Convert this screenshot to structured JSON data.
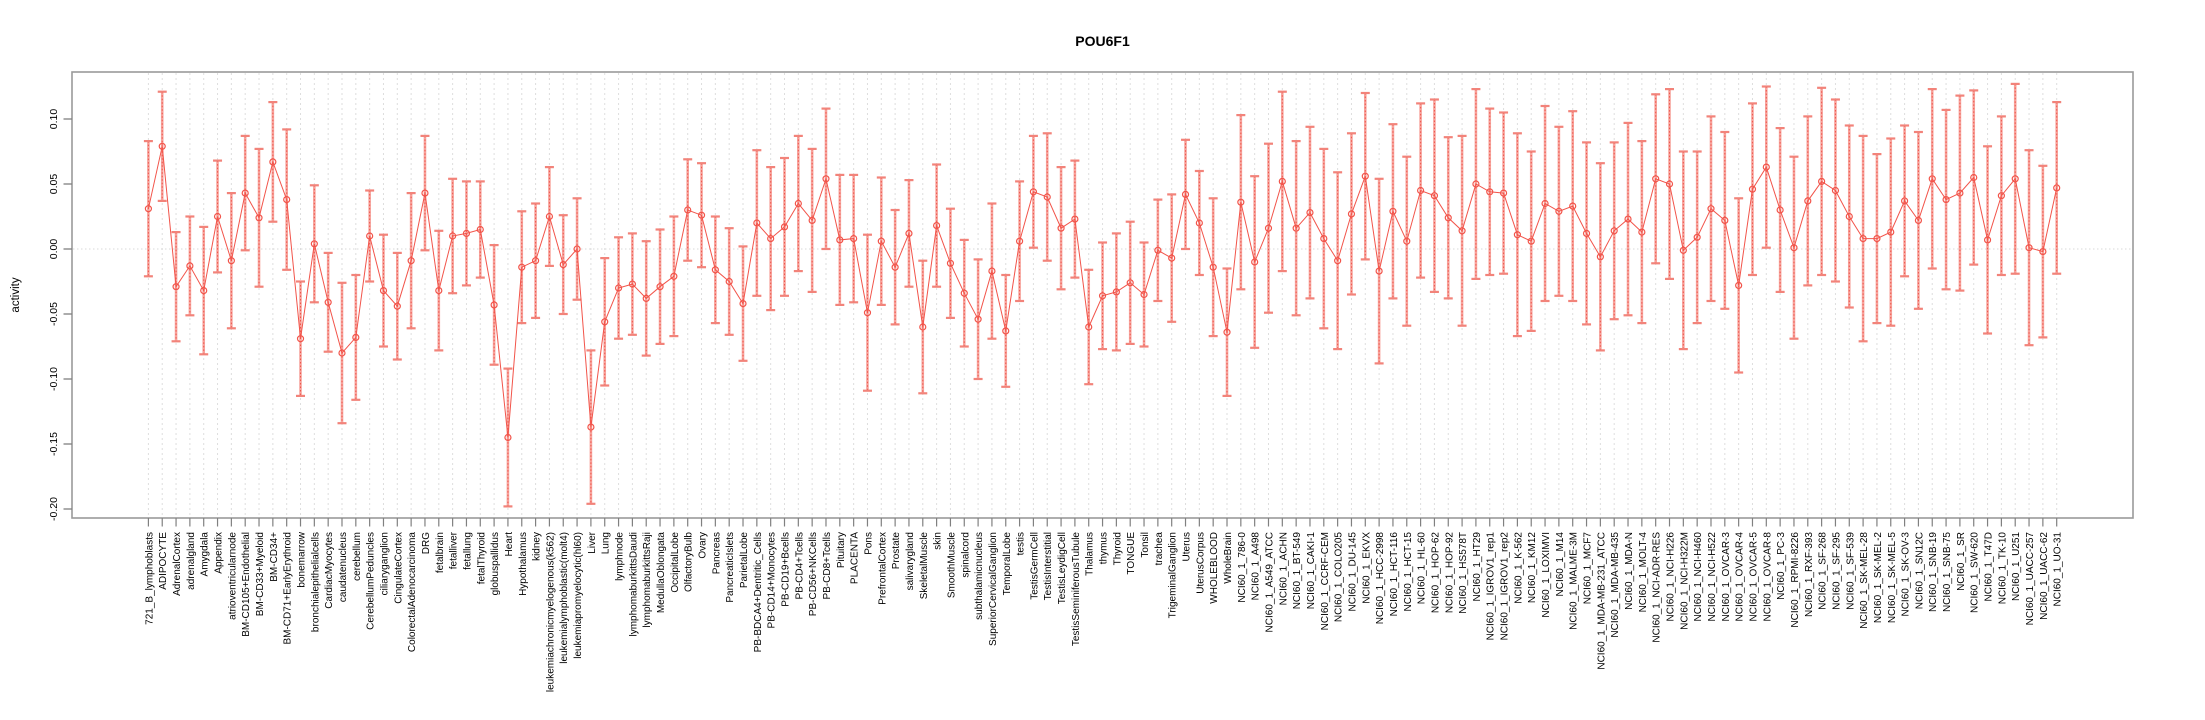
{
  "chart_data": {
    "type": "scatter",
    "title": "POU6F1",
    "ylabel": "activity",
    "xlabel": "",
    "ylim": [
      -0.207,
      0.136
    ],
    "yticks": [
      0.1,
      0.05,
      0.0,
      -0.05,
      -0.1,
      -0.15,
      -0.2
    ],
    "ytick_labels": [
      "0.10",
      "0.05",
      "0.00",
      "-0.05",
      "-0.10",
      "-0.15",
      "-0.20"
    ],
    "grid": "vertical-dashed",
    "zero_line": true,
    "legend": "none",
    "point_style": "open-circle",
    "line_between_points": true,
    "error_bars": "value plus/minus ci_half_width, with caps",
    "colors": {
      "point": "#f2544a",
      "line": "#f2544a",
      "error_bar": "#f7a49d",
      "error_bar_cap": "#f2837a",
      "error_bar_center": "#ef564c",
      "grid": "#dedede",
      "zero_line": "#d9d9d9",
      "box": "#9a9a9a",
      "text": "#000000"
    },
    "categories": [
      "721_B_lymphoblasts",
      "ADIPOCYTE",
      "AdrenalCortex",
      "adrenalgland",
      "Amygdala",
      "Appendix",
      "atrioventricularnode",
      "BM-CD105+Endothelial",
      "BM-CD33+Myeloid",
      "BM-CD34+",
      "BM-CD71+EarlyErythroid",
      "bonemarrow",
      "bronchialepithelialcells",
      "CardiacMyocytes",
      "caudatenucleus",
      "cerebellum",
      "CerebellumPeduncles",
      "ciliaryganglion",
      "CingulateCortex",
      "ColorectalAdenocarcinoma",
      "DRG",
      "fetalbrain",
      "fetalliver",
      "fetallung",
      "fetalThyroid",
      "globuspallidus",
      "Heart",
      "Hypothalamus",
      "kidney",
      "leukemiachronicmyelogenous(k562)",
      "leukemialymphoblastic(molt4)",
      "leukemiapromyelocytic(hl60)",
      "Liver",
      "Lung",
      "lymphnode",
      "lymphomaburkittsDaudi",
      "lymphomaburkittsRaji",
      "MedullaOblongata",
      "OccipitalLobe",
      "OlfactoryBulb",
      "Ovary",
      "Pancreas",
      "PancreaticIslets",
      "ParietalLobe",
      "PB-BDCA4+Dentritic_Cells",
      "PB-CD14+Monocytes",
      "PB-CD19+Bcells",
      "PB-CD4+Tcells",
      "PB-CD56+NKCells",
      "PB-CD8+Tcells",
      "Pituitary",
      "PLACENTA",
      "Pons",
      "PrefrontalCortex",
      "Prostate",
      "salivarygland",
      "SkeletalMuscle",
      "skin",
      "SmoothMuscle",
      "spinalcord",
      "subthalamicnucleus",
      "SuperiorCervicalGanglion",
      "TemporalLobe",
      "testis",
      "TestisGermCell",
      "TestisInterstitial",
      "TestisLeydigCell",
      "TestisSeminiferousTubule",
      "Thalamus",
      "thymus",
      "Thyroid",
      "TONGUE",
      "Tonsil",
      "trachea",
      "TrigeminalGanglion",
      "Uterus",
      "UterusCorpus",
      "WHOLEBLOOD",
      "WholeBrain",
      "NCI60_1_786-0",
      "NCI60_1_A498",
      "NCI60_1_A549_ATCC",
      "NCI60_1_ACHN",
      "NCI60_1_BT-549",
      "NCI60_1_CAKI-1",
      "NCI60_1_CCRF-CEM",
      "NCI60_1_COLO205",
      "NCI60_1_DU-145",
      "NCI60_1_EKVX",
      "NCI60_1_HCC-2998",
      "NCI60_1_HCT-116",
      "NCI60_1_HCT-15",
      "NCI60_1_HL-60",
      "NCI60_1_HOP-62",
      "NCI60_1_HOP-92",
      "NCI60_1_HS578T",
      "NCI60_1_HT29",
      "NCI60_1_IGROV1_rep1",
      "NCI60_1_IGROV1_rep2",
      "NCI60_1_K-562",
      "NCI60_1_KM12",
      "NCI60_1_LOXIMVI",
      "NCI60_1_M14",
      "NCI60_1_MALME-3M",
      "NCI60_1_MCF7",
      "NCI60_1_MDA-MB-231_ATCC",
      "NCI60_1_MDA-MB-435",
      "NCI60_1_MDA-N",
      "NCI60_1_MOLT-4",
      "NCI60_1_NCI-ADR-RES",
      "NCI60_1_NCI-H226",
      "NCI60_1_NCI-H322M",
      "NCI60_1_NCI-H460",
      "NCI60_1_NCI-H522",
      "NCI60_1_OVCAR-3",
      "NCI60_1_OVCAR-4",
      "NCI60_1_OVCAR-5",
      "NCI60_1_OVCAR-8",
      "NCI60_1_PC-3",
      "NCI60_1_RPMI-8226",
      "NCI60_1_RXF-393",
      "NCI60_1_SF-268",
      "NCI60_1_SF-295",
      "NCI60_1_SF-539",
      "NCI60_1_SK-MEL-28",
      "NCI60_1_SK-MEL-2",
      "NCI60_1_SK-MEL-5",
      "NCI60_1_SK-OV-3",
      "NCI60_1_SN12C",
      "NCI60_1_SNB-19",
      "NCI60_1_SNB-75",
      "NCI60_1_SR",
      "NCI60_1_SW-620",
      "NCI60_1_T47D",
      "NCI60_1_TK-10",
      "NCI60_1_U251",
      "NCI60_1_UACC-257",
      "NCI60_1_UACC-62",
      "NCI60_1_UO-31"
    ],
    "values": [
      0.031,
      0.079,
      -0.029,
      -0.013,
      -0.032,
      0.025,
      -0.009,
      0.043,
      0.024,
      0.067,
      0.038,
      -0.069,
      0.004,
      -0.041,
      -0.08,
      -0.068,
      0.01,
      -0.032,
      -0.044,
      -0.009,
      0.043,
      -0.032,
      0.01,
      0.012,
      0.015,
      -0.043,
      -0.145,
      -0.014,
      -0.009,
      0.025,
      -0.012,
      0.0,
      -0.137,
      -0.056,
      -0.03,
      -0.027,
      -0.038,
      -0.029,
      -0.021,
      0.03,
      0.026,
      -0.016,
      -0.025,
      -0.042,
      0.02,
      0.008,
      0.017,
      0.035,
      0.022,
      0.054,
      0.007,
      0.008,
      -0.049,
      0.006,
      -0.014,
      0.012,
      -0.06,
      0.018,
      -0.011,
      -0.034,
      -0.054,
      -0.017,
      -0.063,
      0.006,
      0.044,
      0.04,
      0.016,
      0.023,
      -0.06,
      -0.036,
      -0.033,
      -0.026,
      -0.035,
      -0.001,
      -0.007,
      0.042,
      0.02,
      -0.014,
      -0.064,
      0.036,
      -0.01,
      0.016,
      0.052,
      0.016,
      0.028,
      0.008,
      -0.009,
      0.027,
      0.056,
      -0.017,
      0.029,
      0.006,
      0.045,
      0.041,
      0.024,
      0.014,
      0.05,
      0.044,
      0.043,
      0.011,
      0.006,
      0.035,
      0.029,
      0.033,
      0.012,
      -0.006,
      0.014,
      0.023,
      0.013,
      0.054,
      0.05,
      -0.001,
      0.009,
      0.031,
      0.022,
      -0.028,
      0.046,
      0.063,
      0.03,
      0.001,
      0.037,
      0.052,
      0.045,
      0.025,
      0.008,
      0.008,
      0.013,
      0.037,
      0.022,
      0.054,
      0.038,
      0.043,
      0.055,
      0.007,
      0.041,
      0.054,
      0.001,
      -0.002,
      0.047
    ],
    "ci_half_widths": [
      0.052,
      0.042,
      0.042,
      0.038,
      0.049,
      0.043,
      0.052,
      0.044,
      0.053,
      0.046,
      0.054,
      0.044,
      0.045,
      0.038,
      0.054,
      0.048,
      0.035,
      0.043,
      0.041,
      0.052,
      0.044,
      0.046,
      0.044,
      0.04,
      0.037,
      0.046,
      0.053,
      0.043,
      0.044,
      0.038,
      0.038,
      0.039,
      0.059,
      0.049,
      0.039,
      0.039,
      0.044,
      0.044,
      0.046,
      0.039,
      0.04,
      0.041,
      0.041,
      0.044,
      0.056,
      0.055,
      0.053,
      0.052,
      0.055,
      0.054,
      0.05,
      0.049,
      0.06,
      0.049,
      0.044,
      0.041,
      0.051,
      0.047,
      0.042,
      0.041,
      0.046,
      0.052,
      0.043,
      0.046,
      0.043,
      0.049,
      0.047,
      0.045,
      0.044,
      0.041,
      0.045,
      0.047,
      0.04,
      0.039,
      0.049,
      0.042,
      0.04,
      0.053,
      0.049,
      0.067,
      0.066,
      0.065,
      0.069,
      0.067,
      0.066,
      0.069,
      0.068,
      0.062,
      0.064,
      0.071,
      0.067,
      0.065,
      0.067,
      0.074,
      0.062,
      0.073,
      0.073,
      0.064,
      0.062,
      0.078,
      0.069,
      0.075,
      0.065,
      0.073,
      0.07,
      0.072,
      0.068,
      0.074,
      0.07,
      0.065,
      0.073,
      0.076,
      0.066,
      0.071,
      0.068,
      0.067,
      0.066,
      0.062,
      0.063,
      0.07,
      0.065,
      0.072,
      0.07,
      0.07,
      0.079,
      0.065,
      0.072,
      0.058,
      0.068,
      0.069,
      0.069,
      0.075,
      0.067,
      0.072,
      0.061,
      0.073,
      0.075,
      0.066,
      0.066
    ]
  }
}
